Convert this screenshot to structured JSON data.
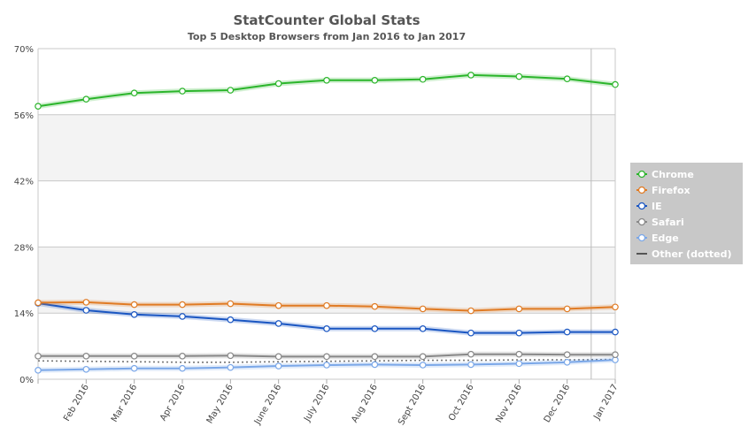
{
  "chart_data": {
    "type": "line",
    "title": "StatCounter Global Stats",
    "subtitle": "Top 5 Desktop Browsers from Jan 2016 to Jan 2017",
    "xlabel": "",
    "ylabel": "",
    "categories": [
      "Jan 2016",
      "Feb 2016",
      "Mar 2016",
      "Apr 2016",
      "May 2016",
      "June 2016",
      "July 2016",
      "Aug 2016",
      "Sept 2016",
      "Oct 2016",
      "Nov 2016",
      "Dec 2016",
      "Jan 2017"
    ],
    "x_tick_labels": [
      "Feb 2016",
      "Mar 2016",
      "Apr 2016",
      "May 2016",
      "June 2016",
      "July 2016",
      "Aug 2016",
      "Sept 2016",
      "Oct 2016",
      "Nov 2016",
      "Dec 2016",
      "Jan 2017"
    ],
    "ylim": [
      0,
      70
    ],
    "y_ticks": [
      0,
      14,
      28,
      42,
      56,
      70
    ],
    "y_tick_labels": [
      "0%",
      "14%",
      "28%",
      "42%",
      "56%",
      "70%"
    ],
    "grid": true,
    "legend_position": "right",
    "series": [
      {
        "name": "Chrome",
        "color": "#2bb52b",
        "dotted": false,
        "values": [
          57.8,
          59.3,
          60.6,
          61.0,
          61.2,
          62.6,
          63.3,
          63.3,
          63.5,
          64.4,
          64.1,
          63.6,
          62.4
        ]
      },
      {
        "name": "Firefox",
        "color": "#e07b24",
        "dotted": false,
        "values": [
          16.2,
          16.3,
          15.8,
          15.8,
          16.0,
          15.6,
          15.6,
          15.4,
          14.9,
          14.5,
          14.9,
          14.9,
          15.3
        ]
      },
      {
        "name": "IE",
        "color": "#1a56c2",
        "dotted": false,
        "values": [
          16.1,
          14.6,
          13.7,
          13.3,
          12.6,
          11.8,
          10.7,
          10.7,
          10.7,
          9.8,
          9.8,
          10.0,
          10.0
        ]
      },
      {
        "name": "Safari",
        "color": "#888888",
        "dotted": false,
        "values": [
          4.9,
          4.9,
          4.9,
          4.9,
          5.0,
          4.8,
          4.8,
          4.8,
          4.8,
          5.3,
          5.3,
          5.2,
          5.2
        ]
      },
      {
        "name": "Edge",
        "color": "#7aa7e8",
        "dotted": false,
        "values": [
          1.9,
          2.1,
          2.3,
          2.3,
          2.5,
          2.8,
          3.0,
          3.1,
          3.0,
          3.1,
          3.3,
          3.6,
          4.1
        ]
      },
      {
        "name": "Other (dotted)",
        "color": "#777777",
        "dotted": true,
        "values": [
          3.9,
          3.8,
          3.7,
          3.6,
          3.6,
          3.7,
          3.8,
          3.9,
          4.0,
          4.0,
          4.1,
          4.1,
          4.2
        ]
      }
    ]
  }
}
